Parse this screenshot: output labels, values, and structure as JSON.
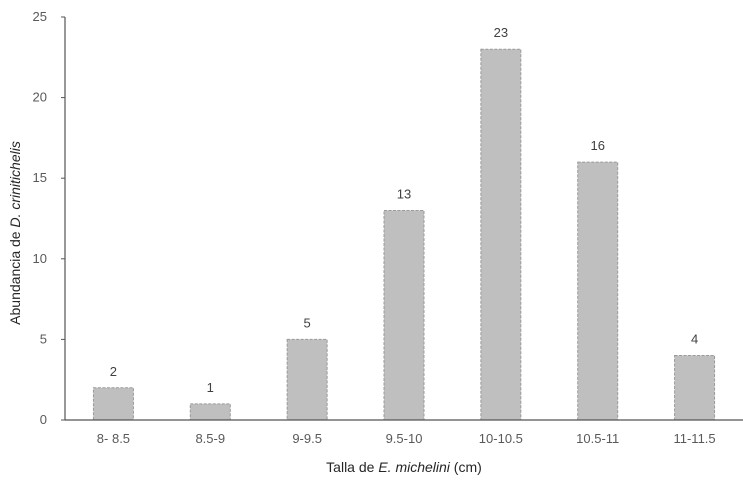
{
  "chart_data": {
    "type": "bar",
    "categories": [
      "8- 8.5",
      "8.5-9",
      "9-9.5",
      "9.5-10",
      "10-10.5",
      "10.5-11",
      "11-11.5"
    ],
    "values": [
      2,
      1,
      5,
      13,
      23,
      16,
      4
    ],
    "data_labels": [
      "2",
      "1",
      "5",
      "13",
      "23",
      "16",
      "4"
    ],
    "yticks": [
      "0",
      "5",
      "10",
      "15",
      "20",
      "25"
    ],
    "ylim": [
      0,
      25
    ],
    "xlabel": {
      "prefix": "Talla de ",
      "species": "E. michelini",
      "suffix": " (cm)"
    },
    "ylabel": {
      "prefix": "Abundancia de ",
      "species": "D. crinitichelis"
    },
    "grid": false,
    "legend": "none",
    "colors": {
      "bar_fill": "#bfbfbf",
      "bar_edge": "#9a9a9a",
      "axis": "#555555"
    }
  }
}
